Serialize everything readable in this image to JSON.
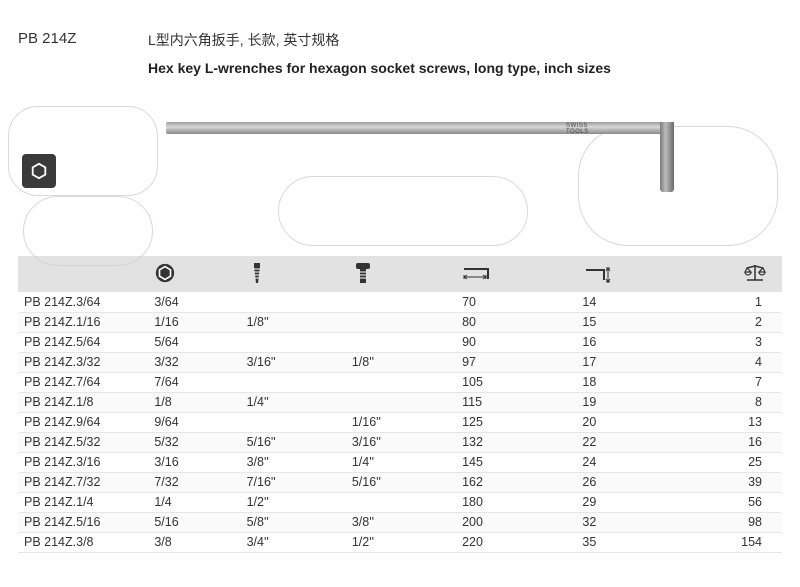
{
  "header": {
    "product_code": "PB 214Z",
    "title_cn": "L型内六角扳手, 长款, 英寸规格",
    "title_en": "Hex key L-wrenches for hexagon socket screws, long type, inch sizes",
    "wrench_brand": "SWISS TOOLS"
  },
  "table": {
    "columns": [
      {
        "key": "code",
        "icon": "none"
      },
      {
        "key": "hex",
        "icon": "hex-icon"
      },
      {
        "key": "screw1",
        "icon": "setscrew-icon"
      },
      {
        "key": "screw2",
        "icon": "capscrew-icon"
      },
      {
        "key": "length",
        "icon": "length-icon"
      },
      {
        "key": "short",
        "icon": "short-icon"
      },
      {
        "key": "weight",
        "icon": "scale-icon"
      }
    ],
    "rows": [
      {
        "code": "PB 214Z.3/64",
        "hex": "3/64",
        "screw1": "",
        "screw2": "",
        "length": "70",
        "short": "14",
        "weight": "1"
      },
      {
        "code": "PB 214Z.1/16",
        "hex": "1/16",
        "screw1": "1/8''",
        "screw2": "",
        "length": "80",
        "short": "15",
        "weight": "2"
      },
      {
        "code": "PB 214Z.5/64",
        "hex": "5/64",
        "screw1": "",
        "screw2": "",
        "length": "90",
        "short": "16",
        "weight": "3"
      },
      {
        "code": "PB 214Z.3/32",
        "hex": "3/32",
        "screw1": "3/16''",
        "screw2": "1/8''",
        "length": "97",
        "short": "17",
        "weight": "4"
      },
      {
        "code": "PB 214Z.7/64",
        "hex": "7/64",
        "screw1": "",
        "screw2": "",
        "length": "105",
        "short": "18",
        "weight": "7"
      },
      {
        "code": "PB 214Z.1/8",
        "hex": "1/8",
        "screw1": "1/4''",
        "screw2": "",
        "length": "115",
        "short": "19",
        "weight": "8"
      },
      {
        "code": "PB 214Z.9/64",
        "hex": "9/64",
        "screw1": "",
        "screw2": "1/16''",
        "length": "125",
        "short": "20",
        "weight": "13"
      },
      {
        "code": "PB 214Z.5/32",
        "hex": "5/32",
        "screw1": "5/16''",
        "screw2": "3/16''",
        "length": "132",
        "short": "22",
        "weight": "16"
      },
      {
        "code": "PB 214Z.3/16",
        "hex": "3/16",
        "screw1": "3/8''",
        "screw2": "1/4''",
        "length": "145",
        "short": "24",
        "weight": "25"
      },
      {
        "code": "PB 214Z.7/32",
        "hex": "7/32",
        "screw1": "7/16''",
        "screw2": "5/16''",
        "length": "162",
        "short": "26",
        "weight": "39"
      },
      {
        "code": "PB 214Z.1/4",
        "hex": "1/4",
        "screw1": "1/2''",
        "screw2": "",
        "length": "180",
        "short": "29",
        "weight": "56"
      },
      {
        "code": "PB 214Z.5/16",
        "hex": "5/16",
        "screw1": "5/8''",
        "screw2": "3/8''",
        "length": "200",
        "short": "32",
        "weight": "98"
      },
      {
        "code": "PB 214Z.3/8",
        "hex": "3/8",
        "screw1": "3/4''",
        "screw2": "1/2''",
        "length": "220",
        "short": "35",
        "weight": "154"
      }
    ]
  },
  "colors": {
    "header_bg": "#e2e2e2",
    "row_border": "#e6e6e6",
    "text": "#333333",
    "watermark": "#d0d0d0"
  }
}
